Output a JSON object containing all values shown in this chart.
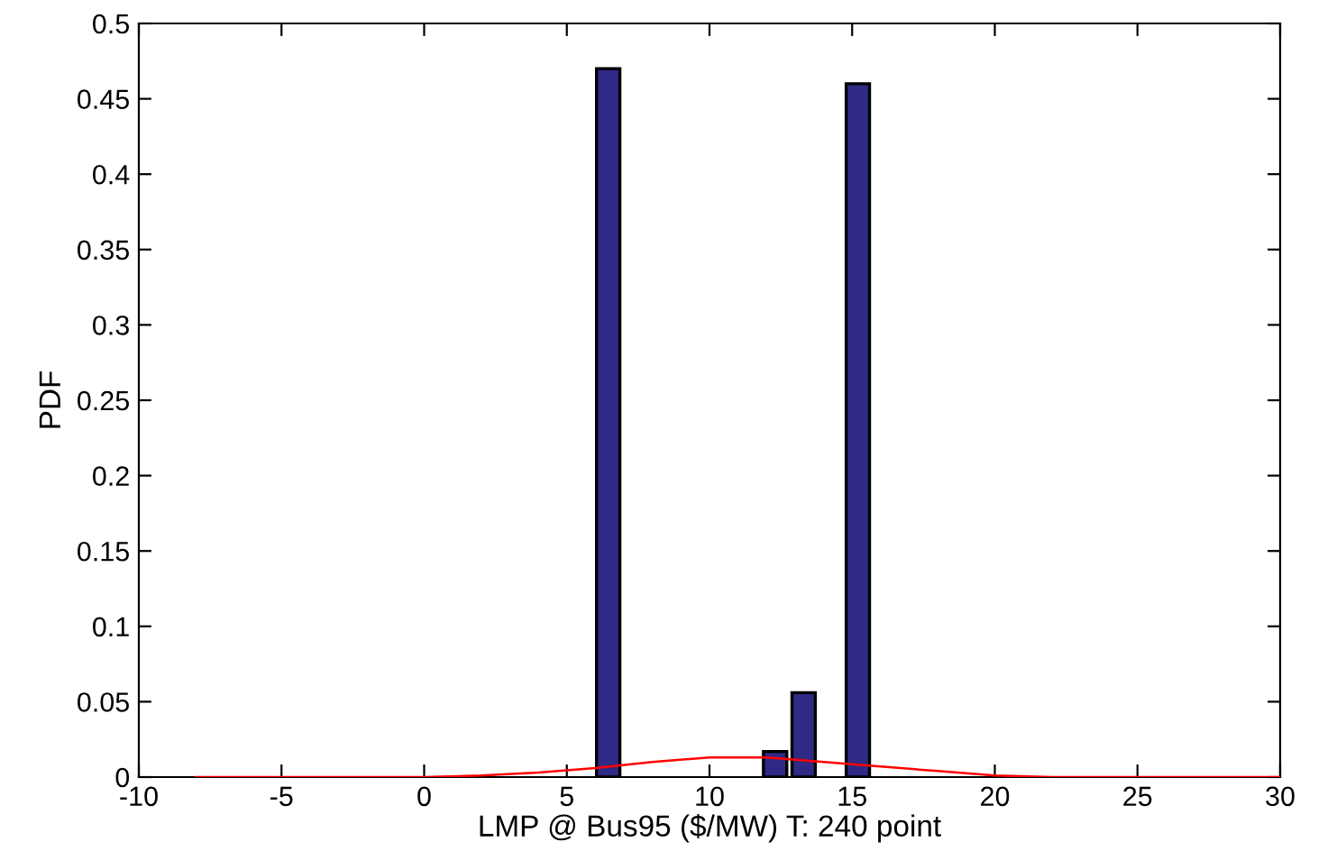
{
  "chart_data": {
    "type": "bar",
    "xlabel": "LMP @ Bus95 ($/MW) T: 240 point",
    "ylabel": "PDF",
    "xlim": [
      -10,
      30
    ],
    "ylim": [
      0,
      0.5
    ],
    "xticks": [
      -10,
      -5,
      0,
      5,
      10,
      15,
      20,
      25,
      30
    ],
    "yticks": [
      0,
      0.05,
      0.1,
      0.15,
      0.2,
      0.25,
      0.3,
      0.35,
      0.4,
      0.45,
      0.5
    ],
    "grid": false,
    "legend": false,
    "series": [
      {
        "color": "#2f2a85",
        "x": [
          6.45,
          12.3,
          13.3,
          15.2
        ],
        "values": [
          0.47,
          0.017,
          0.056,
          0.46
        ]
      },
      {
        "type": "line",
        "color": "#ff0000",
        "marker": "none",
        "line_style": "solid",
        "x": [
          -8,
          -4,
          -2,
          0,
          2,
          4,
          6,
          8,
          10,
          11,
          12,
          14,
          16,
          18,
          20,
          22,
          24,
          26,
          30
        ],
        "values": [
          0,
          0,
          0,
          0,
          0.001,
          0.003,
          0.006,
          0.01,
          0.013,
          0.013,
          0.013,
          0.01,
          0.007,
          0.004,
          0.001,
          0,
          0,
          0,
          0
        ]
      }
    ]
  }
}
